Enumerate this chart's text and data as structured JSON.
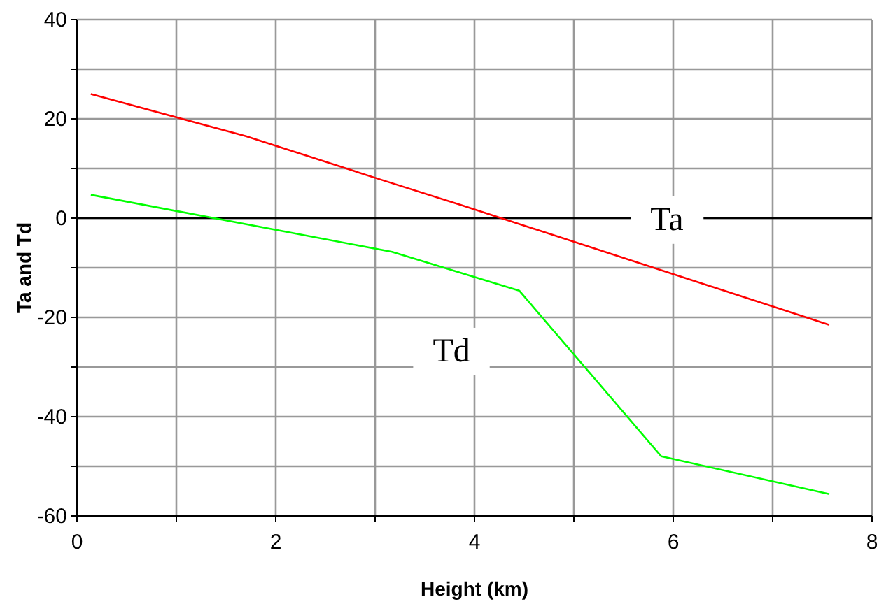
{
  "chart_data": {
    "type": "line",
    "xlabel": "Height (km)",
    "ylabel": "Ta and Td",
    "xlim": [
      0,
      8
    ],
    "xticks": [
      0,
      {
        "value": 1,
        "label": null
      },
      2,
      {
        "value": 3,
        "label": null
      },
      4,
      {
        "value": 5,
        "label": null
      },
      6,
      {
        "value": 7,
        "label": null
      },
      8
    ],
    "ylim": [
      -60,
      40
    ],
    "yticks": [
      -60,
      {
        "value": -50,
        "label": null
      },
      -40,
      {
        "value": -30,
        "label": null
      },
      -20,
      {
        "value": -10,
        "label": null
      },
      0,
      {
        "value": 10,
        "label": null
      },
      20,
      {
        "value": 30,
        "label": null
      },
      40
    ],
    "grid": true,
    "marker": "none",
    "line_style": "solid",
    "ref_lines": [
      {
        "axis": "y",
        "value": 0,
        "color": "#000000"
      }
    ],
    "series": [
      {
        "color": "#ff0000",
        "x": [
          0.14,
          1.7,
          3.05,
          3.87,
          7.57
        ],
        "values": [
          25,
          16.5,
          7.8,
          2.6,
          -21.5
        ]
      },
      {
        "color": "#00ff00",
        "x": [
          0.14,
          3.17,
          4.45,
          5.88,
          7.57
        ],
        "values": [
          4.7,
          -6.8,
          -14.6,
          -48.0,
          -55.6
        ]
      }
    ],
    "annotations": [
      "Ta",
      "Td"
    ]
  }
}
